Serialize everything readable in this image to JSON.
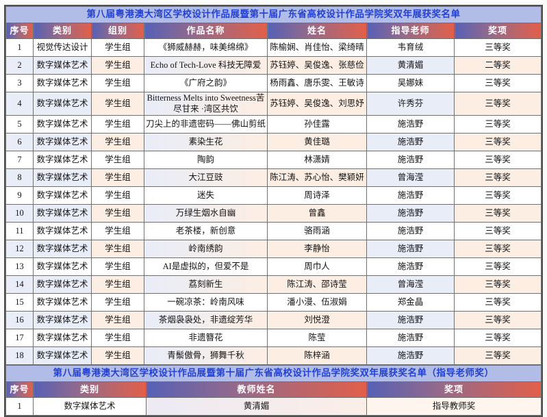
{
  "colors": {
    "title_bg": "#b1bde6",
    "title_text": "#2341d4",
    "header_gradient_left": "#5661b6",
    "header_gradient_right": "#e25f49",
    "even_row_blue": "#e9edf8",
    "even_row_peach": "#fdeee3"
  },
  "table1": {
    "title": "第八届粤港澳大湾区学校设计作品展暨第十届广东省高校设计作品学院奖双年展获奖名单",
    "headers": [
      "序号",
      "类别",
      "组别",
      "作品名称",
      "姓名",
      "指导老师",
      "奖项"
    ],
    "rows": [
      [
        "1",
        "视觉传达设计",
        "学生组",
        "《狮威赫赫，味美绵绵》",
        "陈榆娴、肖佳怡、梁绮晴",
        "韦育绒",
        "三等奖"
      ],
      [
        "2",
        "数字媒体艺术",
        "学生组",
        "Echo of Tech-Love 科技无障爱",
        "苏钰婷、吴俊逸、张慈俭",
        "黄清媚",
        "二等奖"
      ],
      [
        "3",
        "数字媒体艺术",
        "学生组",
        "《广府之韵》",
        "杨雨鑫、唐乐雯、王敏诗",
        "吴娜妹",
        "三等奖"
      ],
      [
        "4",
        "数字媒体艺术",
        "学生组",
        "Bitterness Melts into Sweetness苦尽甘来 ·湾区共饮",
        "苏钰婷、吴俊逸、刘思妤",
        "许秀芬",
        "三等奖"
      ],
      [
        "5",
        "数字媒体艺术",
        "学生组",
        "刀尖上的非遗密码——佛山剪纸",
        "孙佳露",
        "施浩野",
        "三等奖"
      ],
      [
        "6",
        "数字媒体艺术",
        "学生组",
        "素染生花",
        "黄佳璐",
        "施浩野",
        "三等奖"
      ],
      [
        "7",
        "数字媒体艺术",
        "学生组",
        "陶韵",
        "林潇婧",
        "施浩野",
        "三等奖"
      ],
      [
        "8",
        "数字媒体艺术",
        "学生组",
        "大江豆豉",
        "陈江涛、苏心怡、樊颖妍",
        "曾海滢",
        "三等奖"
      ],
      [
        "9",
        "数字媒体艺术",
        "学生组",
        "迷失",
        "周诗泽",
        "施浩野",
        "三等奖"
      ],
      [
        "10",
        "数字媒体艺术",
        "学生组",
        "万绿生烟水自幽",
        "曾鑫",
        "施浩野",
        "三等奖"
      ],
      [
        "11",
        "数字媒体艺术",
        "学生组",
        "老茶楼，新创意",
        "骆雨涵",
        "施浩野",
        "三等奖"
      ],
      [
        "12",
        "数字媒体艺术",
        "学生组",
        "岭南绣韵",
        "李静怡",
        "施浩野",
        "三等奖"
      ],
      [
        "13",
        "数字媒体艺术",
        "学生组",
        "AI是虚拟的，但爱不是",
        "周巾人",
        "施浩野",
        "三等奖"
      ],
      [
        "14",
        "数字媒体艺术",
        "学生组",
        "荔刻新生",
        "陈江涛、邵诗莹",
        "曾海滢",
        "三等奖"
      ],
      [
        "15",
        "数字媒体艺术",
        "学生组",
        "一碗凉茶：岭南风味",
        "潘小漫、伍淑娟",
        "郑金晶",
        "三等奖"
      ],
      [
        "16",
        "数字媒体艺术",
        "学生组",
        "茶烟袅袅处，非遗绽芳华",
        "刘悦澄",
        "施浩野",
        "三等奖"
      ],
      [
        "17",
        "数字媒体艺术",
        "学生组",
        "非遗簪花",
        "陈莹",
        "施浩野",
        "三等奖"
      ],
      [
        "18",
        "数字媒体艺术",
        "学生组",
        "青鬃傲骨，狮舞千秋",
        "陈梓涵",
        "施浩野",
        "三等奖"
      ]
    ]
  },
  "table2": {
    "title": "第八届粤港澳大湾区学校设计作品展暨第十届广东省高校设计作品学院奖双年展获奖名单（指导老师奖）",
    "headers": [
      "序号",
      "类别",
      "教师姓名",
      "奖项"
    ],
    "rows": [
      [
        "1",
        "数字媒体艺术",
        "黄清媚",
        "指导教师奖"
      ]
    ]
  }
}
